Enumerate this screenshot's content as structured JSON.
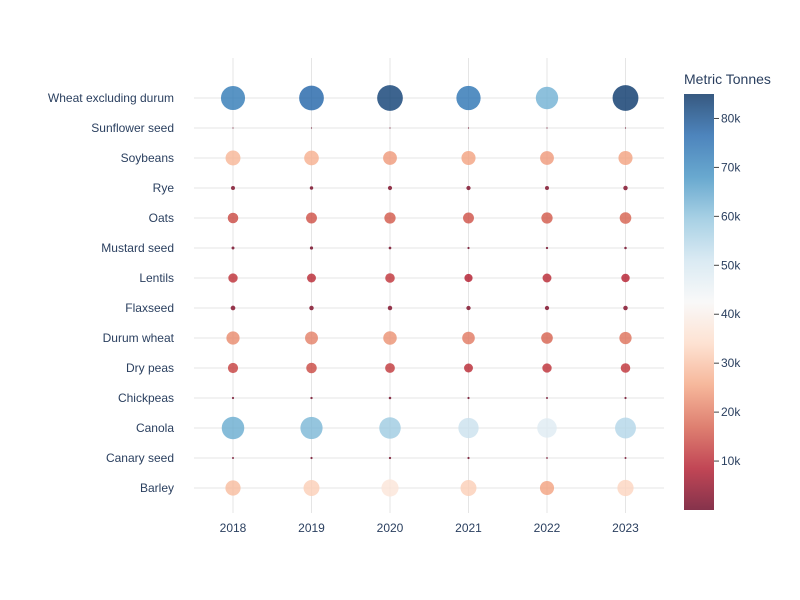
{
  "chart_data": {
    "type": "scatter",
    "subtype": "bubble-matrix",
    "x": [
      "2018",
      "2019",
      "2020",
      "2021",
      "2022",
      "2023"
    ],
    "categories": [
      "Wheat excluding durum",
      "Sunflower seed",
      "Soybeans",
      "Rye",
      "Oats",
      "Mustard seed",
      "Lentils",
      "Flaxseed",
      "Durum wheat",
      "Dry peas",
      "Chickpeas",
      "Canola",
      "Canary seed",
      "Barley"
    ],
    "values": {
      "Wheat excluding durum": [
        73000,
        77000,
        83000,
        74000,
        63000,
        84000
      ],
      "Sunflower seed": [
        150,
        120,
        130,
        110,
        140,
        130
      ],
      "Soybeans": [
        28000,
        27000,
        24000,
        25000,
        24000,
        25000
      ],
      "Rye": [
        2000,
        1500,
        2200,
        2300,
        2000,
        2500
      ],
      "Oats": [
        14000,
        15000,
        16000,
        15000,
        16000,
        17000
      ],
      "Mustard seed": [
        1100,
        1300,
        900,
        600,
        700,
        800
      ],
      "Lentils": [
        11000,
        10000,
        11500,
        8500,
        10000,
        9000
      ],
      "Flaxseed": [
        2800,
        2500,
        2500,
        2400,
        2300,
        2600
      ],
      "Durum wheat": [
        22000,
        21000,
        23000,
        20000,
        17000,
        19000
      ],
      "Dry peas": [
        13000,
        14000,
        12000,
        10000,
        11000,
        11500
      ],
      "Chickpeas": [
        600,
        700,
        800,
        600,
        500,
        600
      ],
      "Canola": [
        64000,
        62000,
        58000,
        52000,
        48000,
        55000
      ],
      "Canary seed": [
        500,
        600,
        700,
        600,
        400,
        500
      ],
      "Barley": [
        29000,
        32000,
        37000,
        32000,
        25000,
        33000
      ]
    },
    "colorbar": {
      "title": "Metric Tonnes",
      "min": 0,
      "max": 85000,
      "ticks": [
        10000,
        20000,
        30000,
        40000,
        50000,
        60000,
        70000,
        80000
      ],
      "tick_labels": [
        "10k",
        "20k",
        "30k",
        "40k",
        "50k",
        "60k",
        "70k",
        "80k"
      ],
      "colorscale": [
        "#67001f",
        "#b2182b",
        "#d6604d",
        "#f4a582",
        "#fddbc7",
        "#f7f7f7",
        "#d1e5f0",
        "#92c5de",
        "#4393c3",
        "#2166ac",
        "#053061"
      ]
    },
    "marker_opacity": 0.8,
    "grid": true,
    "xlabel": "",
    "ylabel": "",
    "title": ""
  }
}
